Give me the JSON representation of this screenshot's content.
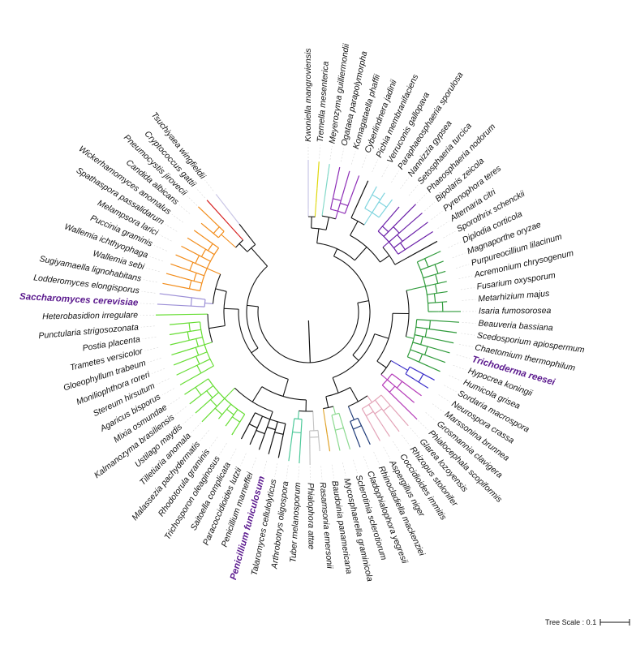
{
  "tree": {
    "rootColor": "#111111",
    "leaves": [
      {
        "name": "Kwoniella mangroviensis",
        "color": "#c9c6e6"
      },
      {
        "name": "Tremella mesenterica",
        "color": "#e0d80a"
      },
      {
        "name": "Meyerozyma guilliermondii",
        "color": "#80d8c8"
      },
      {
        "name": "Ogataea parapolymorpha",
        "color": "#8e2fb7"
      },
      {
        "name": "Komagataella phaffii",
        "color": "#8e2fb7"
      },
      {
        "name": "Cyberlindnera jadinii",
        "color": "#8e2fb7"
      },
      {
        "name": "Pichia membranifaciens",
        "color": "#111111"
      },
      {
        "name": "Verruconis gallopava",
        "color": "#7fd4de"
      },
      {
        "name": "Paraphaeosphaeria sporulosa",
        "color": "#7fd4de"
      },
      {
        "name": "Nannizzia gypsea",
        "color": "#7fd4de"
      },
      {
        "name": "Setosphaeria turcica",
        "color": "#6a1fa8"
      },
      {
        "name": "Phaeosphaeria nodorum",
        "color": "#6a1fa8"
      },
      {
        "name": "Bipolaris zeicola",
        "color": "#6a1fa8"
      },
      {
        "name": "Pyrenophora teres",
        "color": "#6a1fa8"
      },
      {
        "name": "Alternaria citri",
        "color": "#6a1fa8"
      },
      {
        "name": "Sporothrix schenckii",
        "color": "#111111"
      },
      {
        "name": "Diplodia corticola",
        "color": "#2e9a3a"
      },
      {
        "name": "Magnaporthe oryzae",
        "color": "#2e9a3a"
      },
      {
        "name": "Purpureocillium lilacinum",
        "color": "#2e9a3a"
      },
      {
        "name": "Acremonium chrysogenum",
        "color": "#2e9a3a"
      },
      {
        "name": "Fusarium oxysporum",
        "color": "#2e9a3a"
      },
      {
        "name": "Metarhizium majus",
        "color": "#2e9a3a"
      },
      {
        "name": "Isaria fumosorosea",
        "color": "#2e9a3a"
      },
      {
        "name": "Beauveria bassiana",
        "color": "#2e9a3a"
      },
      {
        "name": "Scedosporium apiospermum",
        "color": "#2e9a3a"
      },
      {
        "name": "Chaetomium thermophilum",
        "color": "#2e9a3a"
      },
      {
        "name": "Trichoderma reesei",
        "color": "#2e9a3a",
        "highlight": true
      },
      {
        "name": "Hypocrea koningii",
        "color": "#2e9a3a"
      },
      {
        "name": "Humicola grisea",
        "color": "#2e9a3a"
      },
      {
        "name": "Sordaria macrospora",
        "color": "#3b2fc9"
      },
      {
        "name": "Neurospora crassa",
        "color": "#3b2fc9"
      },
      {
        "name": "Marssonina brunnea",
        "color": "#b43ab8"
      },
      {
        "name": "Grosmannia clavigera",
        "color": "#b43ab8"
      },
      {
        "name": "Phialocephala scopiformis",
        "color": "#b43ab8"
      },
      {
        "name": "Glarea lozoyensis",
        "color": "#e3a3b7"
      },
      {
        "name": "Rhizopus stolonifer",
        "color": "#e3a3b7"
      },
      {
        "name": "Coccidioides immitis",
        "color": "#e3a3b7"
      },
      {
        "name": "Aspergillus niger",
        "color": "#e3a3b7"
      },
      {
        "name": "Rhinocladiella mackenziei",
        "color": "#1d3a78"
      },
      {
        "name": "Cladophialophora yegresii",
        "color": "#1d3a78"
      },
      {
        "name": "Sclerotinia sclerotiorum",
        "color": "#8bd98f"
      },
      {
        "name": "Mycosphaerella graminicola",
        "color": "#8bd98f"
      },
      {
        "name": "Baudoinia panamericana",
        "color": "#e0a32a"
      },
      {
        "name": "Rasamsonia emersonii",
        "color": "#c4c4c4"
      },
      {
        "name": "Phialophora attae",
        "color": "#c4c4c4"
      },
      {
        "name": "Tuber melanosporum",
        "color": "#4ec99a"
      },
      {
        "name": "Arthrobotrys oligospora",
        "color": "#4ec99a"
      },
      {
        "name": "Talaromyces cellulolyticus",
        "color": "#111111"
      },
      {
        "name": "Penicillium funiculosum",
        "color": "#111111",
        "highlight": true
      },
      {
        "name": "Penicillium marneffei",
        "color": "#111111"
      },
      {
        "name": "Paracoccidioides lutzii",
        "color": "#111111"
      },
      {
        "name": "Saitoella complicata",
        "color": "#111111"
      },
      {
        "name": "Trichosporon oleaginosus",
        "color": "#66dd33"
      },
      {
        "name": "Rhodotorula graminis",
        "color": "#66dd33"
      },
      {
        "name": "Malassezia pachydermatis",
        "color": "#66dd33"
      },
      {
        "name": "Tilletiaria anomala",
        "color": "#66dd33"
      },
      {
        "name": "Ustilago maydis",
        "color": "#66dd33"
      },
      {
        "name": "Kalmanozyma brasiliensis",
        "color": "#66dd33"
      },
      {
        "name": "Mixia osmundae",
        "color": "#66dd33"
      },
      {
        "name": "Agaricus bisporus",
        "color": "#66dd33"
      },
      {
        "name": "Stereum hirsutum",
        "color": "#66dd33"
      },
      {
        "name": "Moniliophthora roreri",
        "color": "#66dd33"
      },
      {
        "name": "Gloeophyllum trabeum",
        "color": "#66dd33"
      },
      {
        "name": "Trametes versicolor",
        "color": "#66dd33"
      },
      {
        "name": "Postia placenta",
        "color": "#66dd33"
      },
      {
        "name": "Punctularia strigosozonata",
        "color": "#66dd33"
      },
      {
        "name": "Heterobasidion irregulare",
        "color": "#66dd33"
      },
      {
        "name": "Saccharomyces cerevisiae",
        "color": "#9c8fd6",
        "highlight": true
      },
      {
        "name": "Lodderomyces elongisporus",
        "color": "#9c8fd6"
      },
      {
        "name": "Sugiyamaella lignohabitans",
        "color": "#f28c1a"
      },
      {
        "name": "Wallemia sebi",
        "color": "#f28c1a"
      },
      {
        "name": "Wallemia ichthyophaga",
        "color": "#f28c1a"
      },
      {
        "name": "Puccinia graminis",
        "color": "#f28c1a"
      },
      {
        "name": "Melampsora larici",
        "color": "#f28c1a"
      },
      {
        "name": "Spathaspora passalidarum",
        "color": "#f28c1a"
      },
      {
        "name": "Wickerhamomyces anomalus",
        "color": "#f28c1a"
      },
      {
        "name": "Candida albicans",
        "color": "#f28c1a"
      },
      {
        "name": "Pneumocystis jirovecii",
        "color": "#f28c1a"
      },
      {
        "name": "Cryptococcus gattii",
        "color": "#d62020"
      },
      {
        "name": "Tsuchiyaea wingfieldii",
        "color": "#c9c6e6"
      }
    ]
  },
  "scale": {
    "label": "Tree Scale : 0.1"
  }
}
